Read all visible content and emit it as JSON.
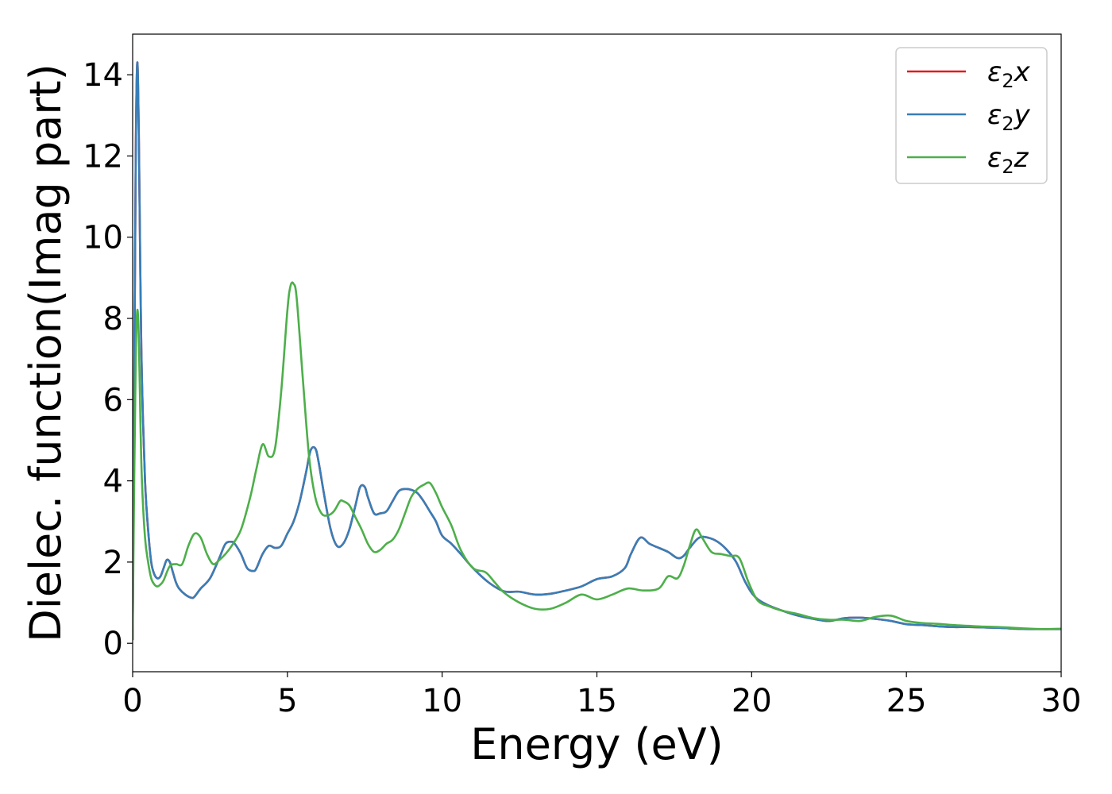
{
  "chart_data": {
    "type": "line",
    "title": "",
    "xlabel": "Energy (eV)",
    "ylabel": "Dielec. function(Imag part)",
    "xlim": [
      0,
      30
    ],
    "ylim": [
      -0.7,
      15
    ],
    "xticks": [
      0,
      5,
      10,
      15,
      20,
      25,
      30
    ],
    "yticks": [
      0,
      2,
      4,
      6,
      8,
      10,
      12,
      14
    ],
    "grid": false,
    "legend_position": "top-right",
    "series": [
      {
        "name": "ε2x",
        "legend_base": "ε",
        "legend_sub": "2",
        "legend_var": "x",
        "color": "#e41a1c",
        "x": [
          0,
          0.05,
          0.1,
          0.15,
          0.2,
          0.25,
          0.3,
          0.4,
          0.5,
          0.6,
          0.7,
          0.8,
          0.9,
          1.0,
          1.1,
          1.2,
          1.3,
          1.4,
          1.5,
          1.7,
          1.9,
          2.0,
          2.2,
          2.5,
          2.8,
          3.0,
          3.2,
          3.3,
          3.5,
          3.7,
          3.9,
          4.0,
          4.2,
          4.4,
          4.6,
          4.8,
          5.0,
          5.2,
          5.4,
          5.6,
          5.75,
          5.9,
          6.0,
          6.2,
          6.4,
          6.6,
          6.8,
          7.0,
          7.2,
          7.35,
          7.5,
          7.6,
          7.8,
          8.0,
          8.2,
          8.4,
          8.6,
          8.8,
          9.0,
          9.2,
          9.4,
          9.6,
          9.8,
          10.0,
          10.3,
          10.6,
          11.0,
          11.5,
          12.0,
          12.5,
          13.0,
          13.5,
          14.0,
          14.5,
          15.0,
          15.5,
          15.9,
          16.1,
          16.4,
          16.7,
          17.0,
          17.3,
          17.6,
          17.8,
          18.0,
          18.3,
          18.6,
          18.9,
          19.2,
          19.5,
          19.8,
          20.1,
          20.5,
          21.0,
          21.5,
          22.0,
          22.5,
          23.0,
          23.5,
          24.0,
          24.5,
          25.0,
          25.5,
          26.0,
          26.5,
          27.0,
          27.5,
          28.0,
          28.5,
          29.0,
          29.5,
          30.0
        ],
        "y": [
          0.1,
          6.0,
          12.0,
          14.3,
          12.5,
          9.0,
          6.5,
          4.0,
          2.8,
          2.0,
          1.7,
          1.6,
          1.65,
          1.85,
          2.05,
          2.0,
          1.75,
          1.5,
          1.35,
          1.2,
          1.12,
          1.15,
          1.35,
          1.6,
          2.1,
          2.45,
          2.5,
          2.45,
          2.2,
          1.85,
          1.78,
          1.85,
          2.2,
          2.4,
          2.35,
          2.4,
          2.7,
          3.0,
          3.5,
          4.2,
          4.75,
          4.8,
          4.5,
          3.6,
          2.8,
          2.4,
          2.45,
          2.8,
          3.4,
          3.85,
          3.85,
          3.6,
          3.2,
          3.2,
          3.25,
          3.5,
          3.75,
          3.8,
          3.78,
          3.7,
          3.5,
          3.25,
          3.0,
          2.65,
          2.45,
          2.2,
          1.85,
          1.5,
          1.28,
          1.27,
          1.2,
          1.22,
          1.3,
          1.4,
          1.58,
          1.65,
          1.85,
          2.2,
          2.6,
          2.45,
          2.35,
          2.25,
          2.1,
          2.15,
          2.35,
          2.6,
          2.6,
          2.5,
          2.3,
          2.0,
          1.5,
          1.15,
          0.95,
          0.8,
          0.68,
          0.6,
          0.55,
          0.62,
          0.63,
          0.6,
          0.55,
          0.47,
          0.45,
          0.42,
          0.4,
          0.4,
          0.39,
          0.38,
          0.36,
          0.35,
          0.35,
          0.35
        ]
      },
      {
        "name": "ε2y",
        "legend_base": "ε",
        "legend_sub": "2",
        "legend_var": "y",
        "color": "#377eb8",
        "x": [
          0,
          0.05,
          0.1,
          0.15,
          0.2,
          0.25,
          0.3,
          0.4,
          0.5,
          0.6,
          0.7,
          0.8,
          0.9,
          1.0,
          1.1,
          1.2,
          1.3,
          1.4,
          1.5,
          1.7,
          1.9,
          2.0,
          2.2,
          2.5,
          2.8,
          3.0,
          3.2,
          3.3,
          3.5,
          3.7,
          3.9,
          4.0,
          4.2,
          4.4,
          4.6,
          4.8,
          5.0,
          5.2,
          5.4,
          5.6,
          5.75,
          5.9,
          6.0,
          6.2,
          6.4,
          6.6,
          6.8,
          7.0,
          7.2,
          7.35,
          7.5,
          7.6,
          7.8,
          8.0,
          8.2,
          8.4,
          8.6,
          8.8,
          9.0,
          9.2,
          9.4,
          9.6,
          9.8,
          10.0,
          10.3,
          10.6,
          11.0,
          11.5,
          12.0,
          12.5,
          13.0,
          13.5,
          14.0,
          14.5,
          15.0,
          15.5,
          15.9,
          16.1,
          16.4,
          16.7,
          17.0,
          17.3,
          17.6,
          17.8,
          18.0,
          18.3,
          18.6,
          18.9,
          19.2,
          19.5,
          19.8,
          20.1,
          20.5,
          21.0,
          21.5,
          22.0,
          22.5,
          23.0,
          23.5,
          24.0,
          24.5,
          25.0,
          25.5,
          26.0,
          26.5,
          27.0,
          27.5,
          28.0,
          28.5,
          29.0,
          29.5,
          30.0
        ],
        "y": [
          0.1,
          6.0,
          12.0,
          14.3,
          12.5,
          9.0,
          6.5,
          4.0,
          2.8,
          2.0,
          1.7,
          1.6,
          1.65,
          1.85,
          2.05,
          2.0,
          1.75,
          1.5,
          1.35,
          1.2,
          1.12,
          1.15,
          1.35,
          1.6,
          2.1,
          2.45,
          2.5,
          2.45,
          2.2,
          1.85,
          1.78,
          1.85,
          2.2,
          2.4,
          2.35,
          2.4,
          2.7,
          3.0,
          3.5,
          4.2,
          4.75,
          4.8,
          4.5,
          3.6,
          2.8,
          2.4,
          2.45,
          2.8,
          3.4,
          3.85,
          3.85,
          3.6,
          3.2,
          3.2,
          3.25,
          3.5,
          3.75,
          3.8,
          3.78,
          3.7,
          3.5,
          3.25,
          3.0,
          2.65,
          2.45,
          2.2,
          1.85,
          1.5,
          1.28,
          1.27,
          1.2,
          1.22,
          1.3,
          1.4,
          1.58,
          1.65,
          1.85,
          2.2,
          2.6,
          2.45,
          2.35,
          2.25,
          2.1,
          2.15,
          2.35,
          2.6,
          2.6,
          2.5,
          2.3,
          2.0,
          1.5,
          1.15,
          0.95,
          0.8,
          0.68,
          0.6,
          0.55,
          0.62,
          0.63,
          0.6,
          0.55,
          0.47,
          0.45,
          0.42,
          0.4,
          0.4,
          0.39,
          0.38,
          0.36,
          0.35,
          0.35,
          0.35
        ]
      },
      {
        "name": "ε2z",
        "legend_base": "ε",
        "legend_sub": "2",
        "legend_var": "z",
        "color": "#4daf4a",
        "x": [
          0,
          0.05,
          0.1,
          0.15,
          0.2,
          0.25,
          0.3,
          0.4,
          0.5,
          0.6,
          0.7,
          0.8,
          0.9,
          1.0,
          1.2,
          1.4,
          1.6,
          1.8,
          2.0,
          2.2,
          2.4,
          2.6,
          2.8,
          3.0,
          3.2,
          3.5,
          3.8,
          4.0,
          4.2,
          4.4,
          4.6,
          4.8,
          5.0,
          5.1,
          5.2,
          5.3,
          5.5,
          5.7,
          5.9,
          6.1,
          6.3,
          6.5,
          6.7,
          6.8,
          7.0,
          7.2,
          7.4,
          7.6,
          7.8,
          8.0,
          8.2,
          8.4,
          8.6,
          8.8,
          9.0,
          9.2,
          9.4,
          9.6,
          9.8,
          10.0,
          10.3,
          10.6,
          11.0,
          11.4,
          11.7,
          12.0,
          12.5,
          13.0,
          13.5,
          14.0,
          14.5,
          15.0,
          15.5,
          16.0,
          16.5,
          17.0,
          17.3,
          17.6,
          17.8,
          18.0,
          18.2,
          18.4,
          18.7,
          19.0,
          19.3,
          19.6,
          19.9,
          20.2,
          20.6,
          21.0,
          21.5,
          22.0,
          22.5,
          23.0,
          23.5,
          24.0,
          24.5,
          25.0,
          25.5,
          26.0,
          26.5,
          27.0,
          27.5,
          28.0,
          28.5,
          29.0,
          29.5,
          30.0
        ],
        "y": [
          0.1,
          4.0,
          7.0,
          8.2,
          7.5,
          5.5,
          4.0,
          2.6,
          2.0,
          1.6,
          1.45,
          1.4,
          1.45,
          1.55,
          1.9,
          1.95,
          1.95,
          2.4,
          2.7,
          2.6,
          2.2,
          1.95,
          2.05,
          2.2,
          2.4,
          2.8,
          3.6,
          4.3,
          4.9,
          4.6,
          4.8,
          6.2,
          8.2,
          8.8,
          8.85,
          8.5,
          6.5,
          4.6,
          3.6,
          3.2,
          3.15,
          3.25,
          3.5,
          3.5,
          3.4,
          3.1,
          2.8,
          2.45,
          2.25,
          2.3,
          2.45,
          2.55,
          2.8,
          3.2,
          3.6,
          3.8,
          3.9,
          3.95,
          3.7,
          3.35,
          2.9,
          2.3,
          1.85,
          1.75,
          1.5,
          1.25,
          1.0,
          0.85,
          0.85,
          1.0,
          1.2,
          1.08,
          1.2,
          1.35,
          1.3,
          1.35,
          1.65,
          1.6,
          1.9,
          2.4,
          2.8,
          2.6,
          2.25,
          2.2,
          2.15,
          2.1,
          1.5,
          1.05,
          0.9,
          0.8,
          0.72,
          0.62,
          0.58,
          0.58,
          0.55,
          0.65,
          0.68,
          0.55,
          0.5,
          0.48,
          0.45,
          0.43,
          0.41,
          0.4,
          0.38,
          0.36,
          0.35,
          0.36
        ]
      }
    ]
  }
}
